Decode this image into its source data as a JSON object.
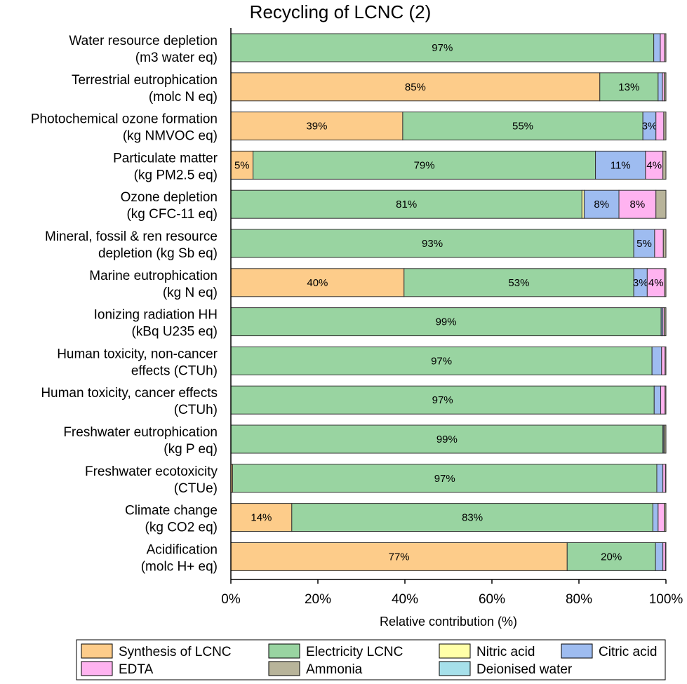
{
  "chart_data": {
    "type": "bar",
    "orientation": "horizontal",
    "stacked": true,
    "title": "Recycling of LCNC (2)",
    "xlabel": "Relative contribution (%)",
    "xlim": [
      0,
      100
    ],
    "xticks": [
      "0%",
      "20%",
      "40%",
      "60%",
      "80%",
      "100%"
    ],
    "legend_position": "bottom",
    "categories": [
      [
        "Water resource depletion",
        "(m3 water eq)"
      ],
      [
        "Terrestrial eutrophication",
        "(molc N eq)"
      ],
      [
        "Photochemical ozone formation",
        "(kg NMVOC eq)"
      ],
      [
        "Particulate matter",
        "(kg PM2.5 eq)"
      ],
      [
        "Ozone depletion",
        "(kg CFC-11 eq)"
      ],
      [
        "Mineral, fossil & ren resource",
        "depletion (kg Sb eq)"
      ],
      [
        "Marine eutrophication",
        "(kg N eq)"
      ],
      [
        "Ionizing radiation HH",
        "(kBq U235 eq)"
      ],
      [
        "Human toxicity, non-cancer",
        "effects (CTUh)"
      ],
      [
        "Human toxicity, cancer effects",
        "(CTUh)"
      ],
      [
        "Freshwater eutrophication",
        "(kg P eq)"
      ],
      [
        "Freshwater ecotoxicity",
        "(CTUe)"
      ],
      [
        "Climate change",
        "(kg CO2 eq)"
      ],
      [
        "Acidification",
        "(molc H+ eq)"
      ]
    ],
    "series": [
      {
        "name": "Synthesis of LCNC",
        "color": "#FDCC8A",
        "values": [
          0,
          84.8,
          39.5,
          5.1,
          0,
          0,
          39.8,
          0,
          0,
          0,
          0,
          0.4,
          14.0,
          77.3
        ],
        "labels": [
          "",
          "85%",
          "39%",
          "5%",
          "",
          "",
          "40%",
          "",
          "",
          "",
          "",
          "",
          "14%",
          "77%"
        ]
      },
      {
        "name": "Electricity LCNC",
        "color": "#99D4A1",
        "values": [
          97.2,
          13.4,
          55.2,
          78.7,
          80.7,
          92.6,
          52.8,
          98.9,
          96.8,
          97.3,
          99.3,
          97.5,
          83.0,
          20.3
        ],
        "labels": [
          "97%",
          "13%",
          "55%",
          "79%",
          "81%",
          "93%",
          "53%",
          "99%",
          "97%",
          "97%",
          "99%",
          "97%",
          "83%",
          "20%"
        ]
      },
      {
        "name": "Nitric acid",
        "color": "#FFFFA8",
        "values": [
          0,
          0,
          0,
          0,
          0.5,
          0,
          0,
          0,
          0,
          0,
          0,
          0,
          0,
          0
        ],
        "labels": [
          "",
          "",
          "",
          "",
          "",
          "",
          "",
          "",
          "",
          "",
          "",
          "",
          "",
          ""
        ]
      },
      {
        "name": "Citric acid",
        "color": "#9EBCF0",
        "values": [
          1.5,
          1.0,
          3.0,
          11.5,
          8.0,
          4.8,
          3.1,
          0.4,
          2.2,
          1.5,
          0.2,
          1.4,
          1.2,
          1.7
        ],
        "labels": [
          "",
          "",
          "3%",
          "11%",
          "8%",
          "5%",
          "3%",
          "",
          "",
          "",
          "",
          "",
          "",
          ""
        ]
      },
      {
        "name": "EDTA",
        "color": "#FFB3F0",
        "values": [
          1.0,
          0.4,
          1.8,
          4.0,
          8.5,
          2.0,
          4.0,
          0.3,
          0.8,
          1.0,
          0.1,
          0.6,
          1.4,
          0.6
        ],
        "labels": [
          "",
          "",
          "",
          "4%",
          "8%",
          "",
          "4%",
          "",
          "",
          "",
          "",
          "",
          "",
          ""
        ]
      },
      {
        "name": "Ammonia",
        "color": "#B8B49A",
        "values": [
          0.3,
          0.4,
          0.5,
          0.7,
          2.3,
          0.6,
          0.3,
          0.4,
          0.2,
          0.2,
          0.4,
          0.1,
          0.4,
          0.1
        ],
        "labels": [
          "",
          "",
          "",
          "",
          "",
          "",
          "",
          "",
          "",
          "",
          "",
          "",
          "",
          ""
        ]
      },
      {
        "name": "Deionised water",
        "color": "#A6E0EA",
        "values": [
          0,
          0,
          0,
          0,
          0,
          0,
          0,
          0,
          0,
          0,
          0,
          0,
          0,
          0
        ],
        "labels": [
          "",
          "",
          "",
          "",
          "",
          "",
          "",
          "",
          "",
          "",
          "",
          "",
          "",
          ""
        ]
      }
    ]
  }
}
